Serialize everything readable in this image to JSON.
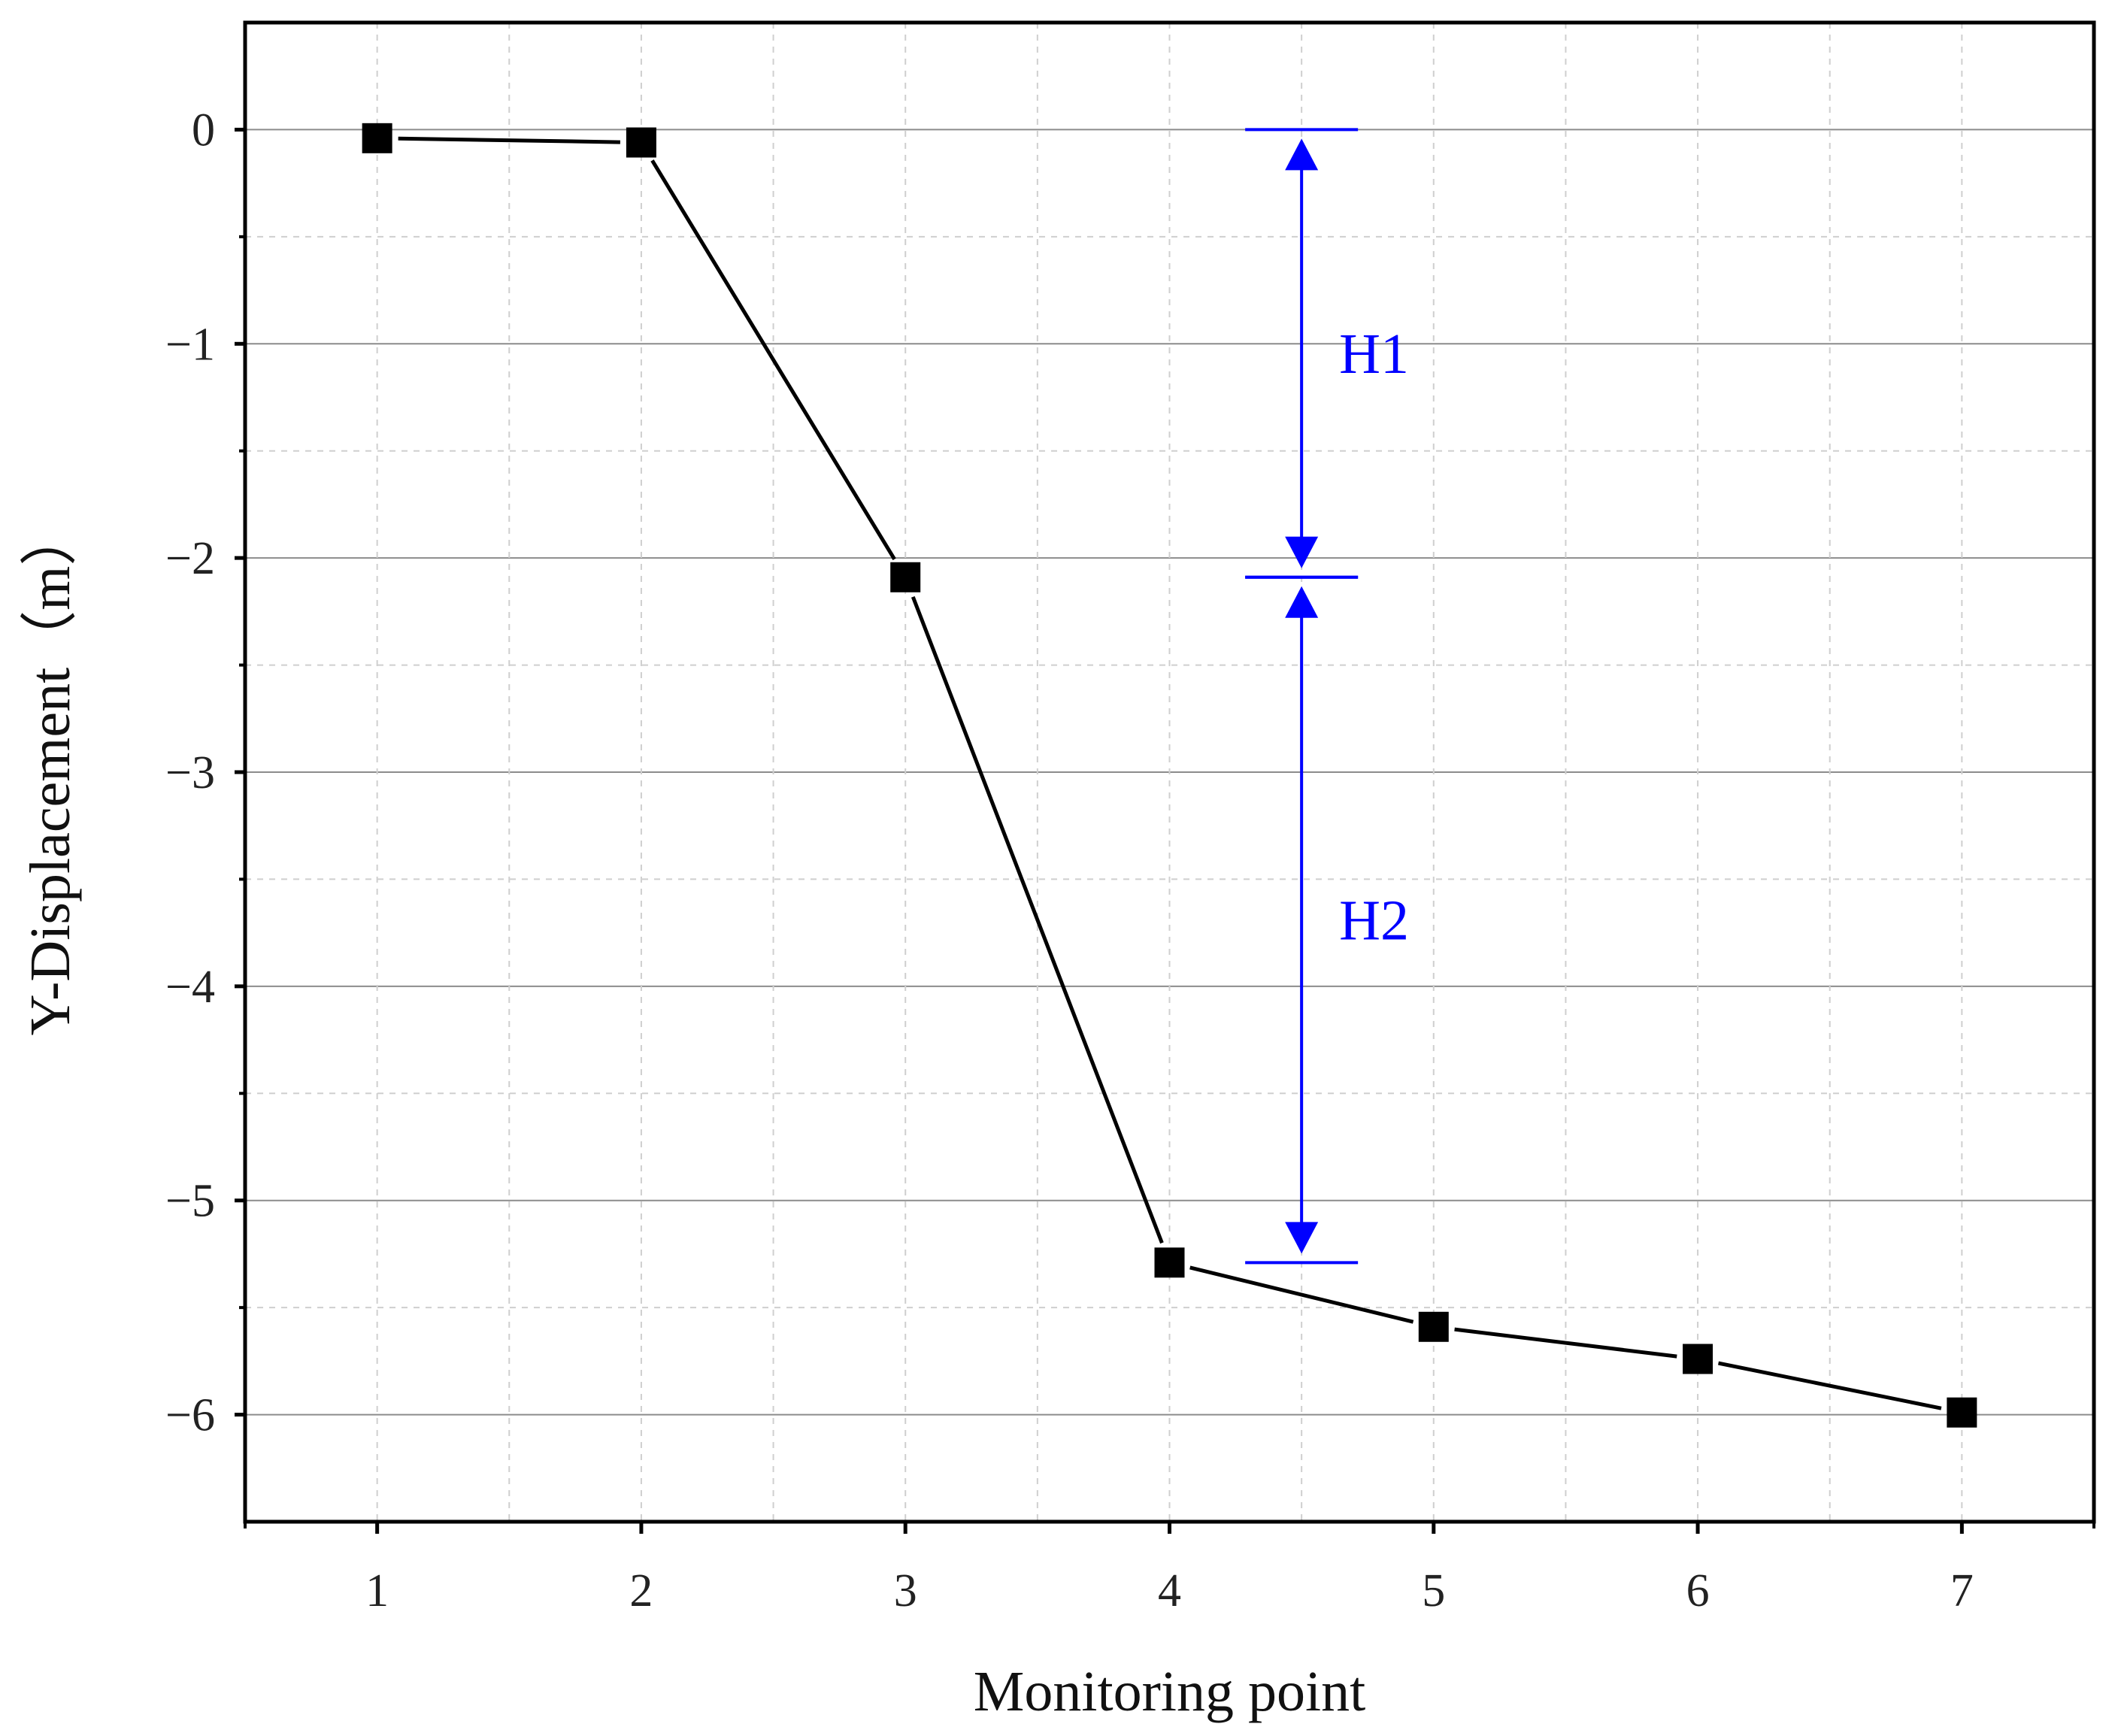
{
  "chart_data": {
    "type": "line",
    "xlabel": "Monitoring point",
    "ylabel": "Y-Displacement（m）",
    "xlim": [
      0.5,
      7.5
    ],
    "ylim": [
      -6.5,
      0.5
    ],
    "x_ticks": [
      1,
      2,
      3,
      4,
      5,
      6,
      7
    ],
    "x_tick_labels": [
      "1",
      "2",
      "3",
      "4",
      "5",
      "6",
      "7"
    ],
    "y_ticks": [
      0,
      -1,
      -2,
      -3,
      -4,
      -5,
      -6
    ],
    "y_tick_labels": [
      "0",
      "−1",
      "−2",
      "−3",
      "−4",
      "−5",
      "−6"
    ],
    "grid": true,
    "series": [
      {
        "marker": "square",
        "color": "#000000",
        "x": [
          1,
          2,
          3,
          4,
          5,
          6,
          7
        ],
        "y": [
          -0.04,
          -0.06,
          -2.09,
          -5.29,
          -5.59,
          -5.74,
          -5.99
        ]
      }
    ],
    "annotations": [
      {
        "label": "H1",
        "x": 4.5,
        "y_from": 0,
        "y_to": -2.09,
        "color": "#0000ff"
      },
      {
        "label": "H2",
        "x": 4.5,
        "y_from": -2.09,
        "y_to": -5.29,
        "color": "#0000ff"
      }
    ]
  }
}
